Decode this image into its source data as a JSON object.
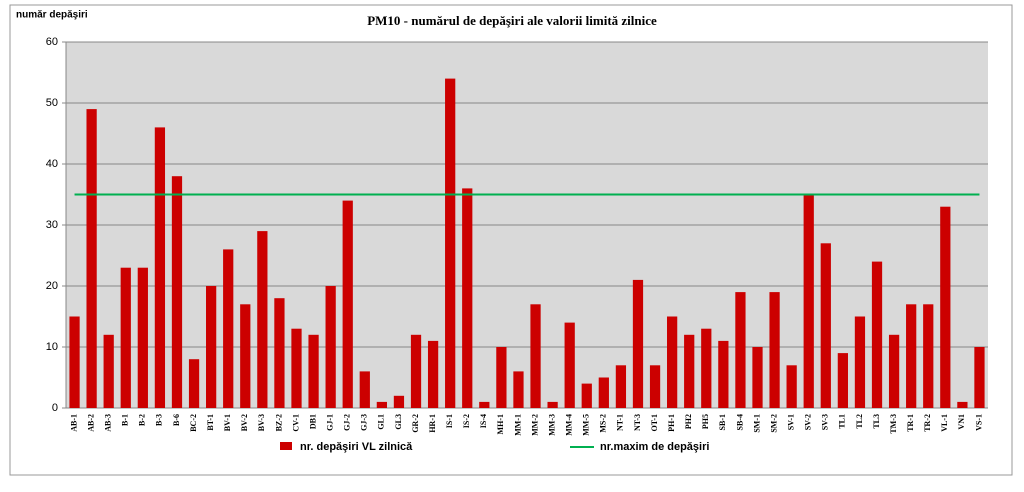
{
  "chart_data": {
    "type": "bar",
    "title": "PM10 - numărul  de depăşiri  ale valorii  limită  zilnice",
    "y_label": "număr depăşiri",
    "categories": [
      "AB-1",
      "AB-2",
      "AB-3",
      "B-1",
      "B-2",
      "B-3",
      "B-6",
      "BC-2",
      "BT-1",
      "BV-1",
      "BV-2",
      "BV-3",
      "BZ-2",
      "CV-1",
      "DB1",
      "GJ-1",
      "GJ-2",
      "GJ-3",
      "GL1",
      "GL3",
      "GR-2",
      "HR-1",
      "IS-1",
      "IS-2",
      "IS-4",
      "MH-1",
      "MM-1",
      "MM-2",
      "MM-3",
      "MM-4",
      "MM-5",
      "MS-2",
      "NT-1",
      "NT-3",
      "OT-1",
      "PH-1",
      "PH2",
      "PH5",
      "SB-1",
      "SB-4",
      "SM-1",
      "SM-2",
      "SV-1",
      "SV-2",
      "SV-3",
      "TL1",
      "TL2",
      "TL3",
      "TM-3",
      "TR-1",
      "TR-2",
      "VL-1",
      "VN1",
      "VS-1"
    ],
    "series": [
      {
        "name": "nr. depăşiri  VL zilnică",
        "color": "#cc0000",
        "values": [
          15,
          49,
          12,
          23,
          23,
          46,
          38,
          8,
          20,
          26,
          17,
          29,
          18,
          13,
          12,
          20,
          34,
          6,
          1,
          2,
          12,
          11,
          54,
          36,
          1,
          10,
          6,
          17,
          1,
          14,
          4,
          5,
          7,
          21,
          7,
          15,
          12,
          13,
          11,
          19,
          10,
          19,
          7,
          35,
          27,
          9,
          15,
          24,
          12,
          17,
          17,
          33,
          1,
          10
        ]
      }
    ],
    "reference_line": {
      "name": "nr.maxim de depăşiri",
      "color": "#00b050",
      "value": 35
    },
    "ylim": [
      0,
      60
    ],
    "yticks": [
      0,
      10,
      20,
      30,
      40,
      50,
      60
    ],
    "grid": true
  }
}
